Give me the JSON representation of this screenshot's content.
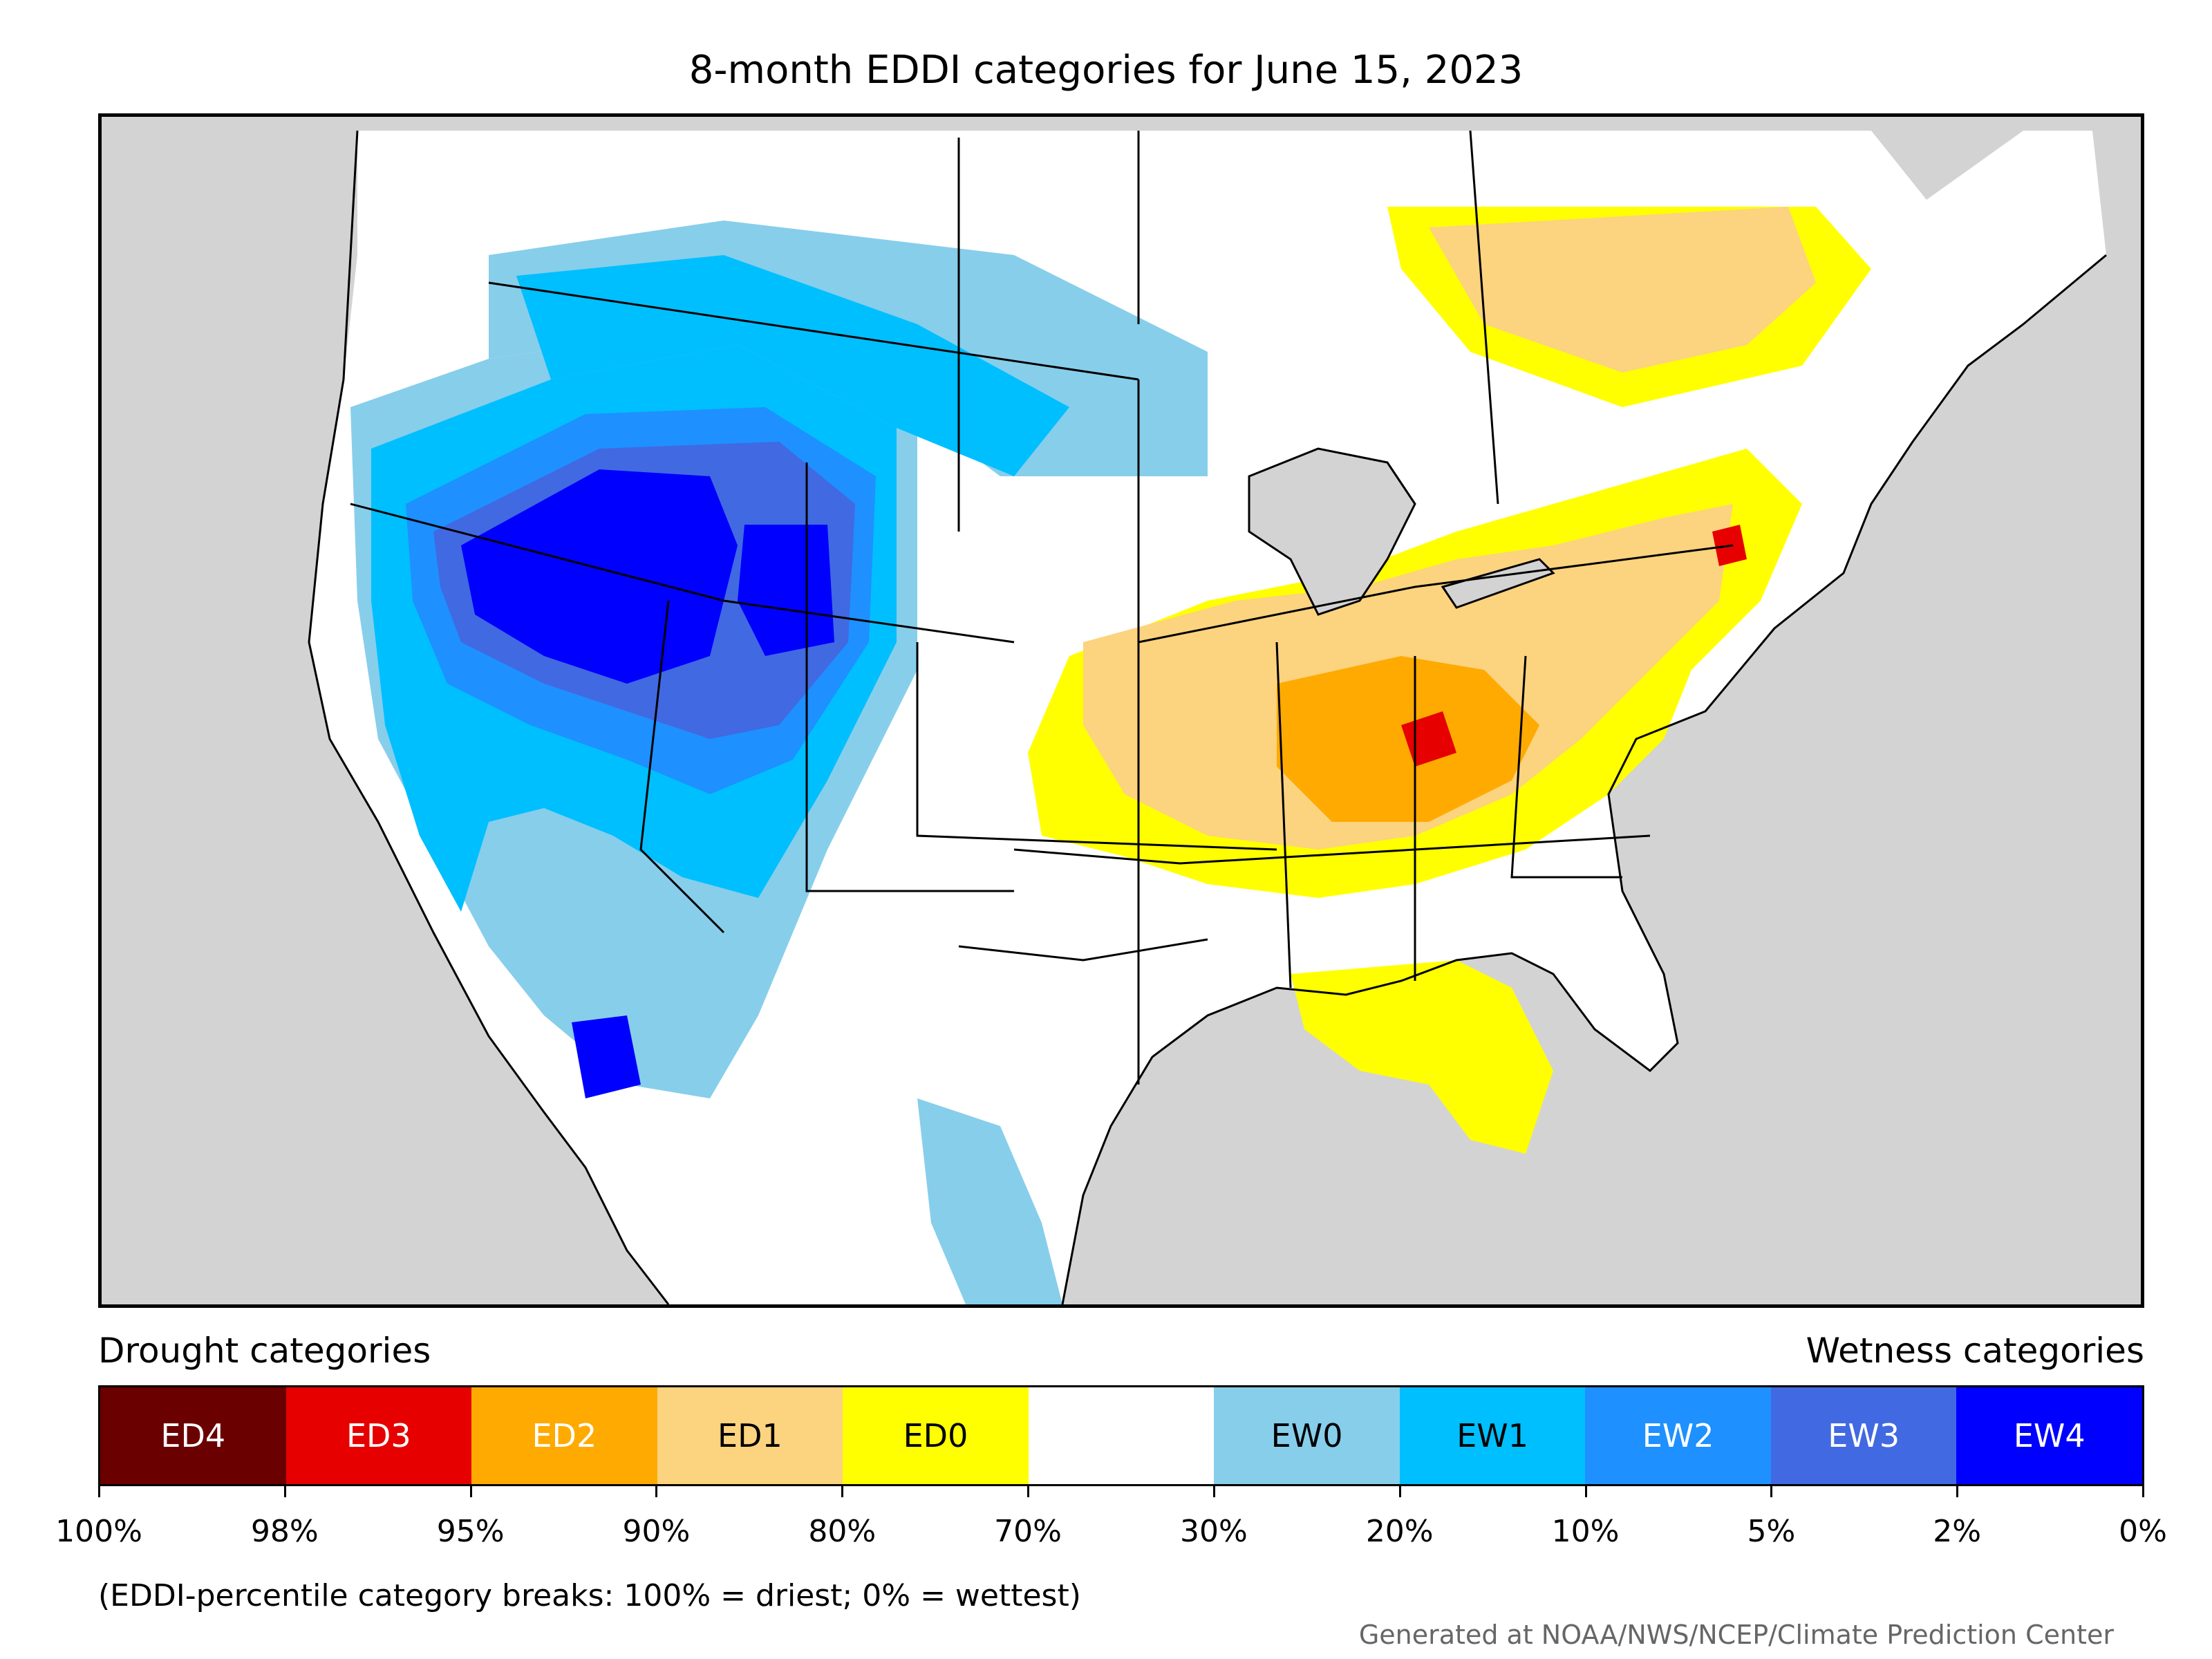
{
  "title": "8-month EDDI categories for June 15, 2023",
  "legend": {
    "left_heading": "Drought categories",
    "right_heading": "Wetness categories",
    "categories": [
      {
        "label": "ED4",
        "color": "#6b0000",
        "text_color": "#ffffff"
      },
      {
        "label": "ED3",
        "color": "#e60000",
        "text_color": "#ffffff"
      },
      {
        "label": "ED2",
        "color": "#ffaa00",
        "text_color": "#ffffff"
      },
      {
        "label": "ED1",
        "color": "#fcd37f",
        "text_color": "#000000"
      },
      {
        "label": "ED0",
        "color": "#ffff00",
        "text_color": "#000000"
      },
      {
        "label": "",
        "color": "#ffffff",
        "text_color": "#000000"
      },
      {
        "label": "EW0",
        "color": "#87ceeb",
        "text_color": "#000000"
      },
      {
        "label": "EW1",
        "color": "#00bfff",
        "text_color": "#000000"
      },
      {
        "label": "EW2",
        "color": "#1e90ff",
        "text_color": "#ffffff"
      },
      {
        "label": "EW3",
        "color": "#4169e1",
        "text_color": "#ffffff"
      },
      {
        "label": "EW4",
        "color": "#0000ff",
        "text_color": "#ffffff"
      }
    ],
    "tick_labels": [
      "100%",
      "98%",
      "95%",
      "90%",
      "80%",
      "70%",
      "30%",
      "20%",
      "10%",
      "5%",
      "2%",
      "0%"
    ],
    "note": "(EDDI-percentile category breaks: 100% = driest; 0% = wettest)"
  },
  "credit": "Generated at NOAA/NWS/NCEP/Climate Prediction Center",
  "colors": {
    "ocean": "#d3d3d3",
    "land": "#ffffff",
    "boundary": "#000000"
  }
}
